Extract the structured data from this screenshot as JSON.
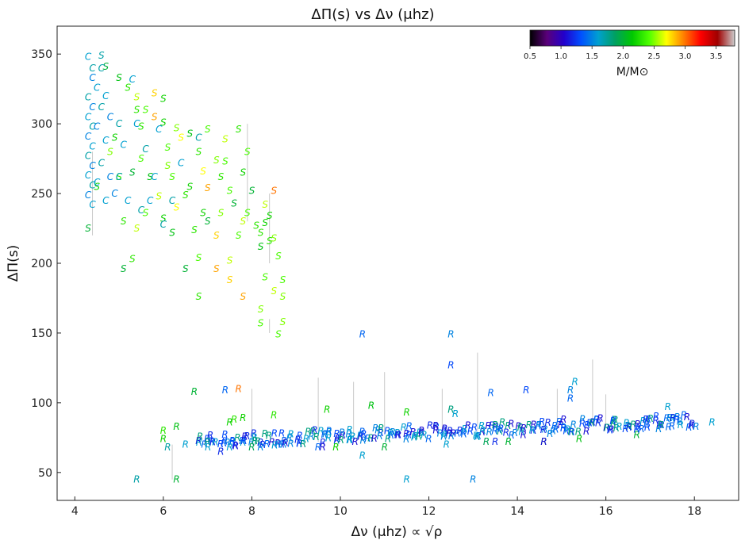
{
  "chart_data": {
    "type": "scatter",
    "title": "ΔΠ(s) vs Δν (μhz)",
    "xlabel": "Δν (μhz) ∝ √ρ",
    "ylabel": "ΔΠ(s)",
    "xlim": [
      3.6,
      19.0
    ],
    "ylim": [
      30,
      370
    ],
    "xticks": [
      4,
      6,
      8,
      10,
      12,
      14,
      16,
      18
    ],
    "yticks": [
      50,
      100,
      150,
      200,
      250,
      300,
      350
    ],
    "grid": false,
    "marker_type": "text glyphs: S, C, R",
    "colorbar": {
      "label": "M/M⊙",
      "range": [
        0.5,
        3.8
      ],
      "ticks": [
        0.5,
        1.0,
        1.5,
        2.0,
        2.5,
        3.0,
        3.5
      ],
      "tick_labels": [
        "0.5",
        "1.0",
        "1.5",
        "2.0",
        "2.5",
        "3.0",
        "3.5"
      ],
      "colormap": [
        "#000000",
        "#5a007a",
        "#2200cc",
        "#0050ff",
        "#00a0d0",
        "#00a060",
        "#00c800",
        "#50ff00",
        "#ffff00",
        "#ff8000",
        "#ff0000",
        "#a00000",
        "#cccccc"
      ],
      "placement": "top-right"
    },
    "series": [
      {
        "symbol": "S",
        "points": [
          [
            4.6,
            349,
            1.7
          ],
          [
            4.7,
            341,
            2.0
          ],
          [
            5.0,
            333,
            2.1
          ],
          [
            5.2,
            326,
            2.3
          ],
          [
            5.4,
            319,
            2.6
          ],
          [
            5.6,
            310,
            2.4
          ],
          [
            5.8,
            305,
            2.9
          ],
          [
            6.0,
            301,
            2.2
          ],
          [
            6.3,
            297,
            2.5
          ],
          [
            6.6,
            293,
            2.1
          ],
          [
            7.0,
            296,
            2.4
          ],
          [
            7.4,
            289,
            2.6
          ],
          [
            7.7,
            296,
            2.3
          ],
          [
            7.2,
            274,
            2.5
          ],
          [
            7.8,
            265,
            2.2
          ],
          [
            6.9,
            266,
            2.7
          ],
          [
            6.2,
            262,
            2.4
          ],
          [
            5.7,
            262,
            2.1
          ],
          [
            5.3,
            265,
            2.0
          ],
          [
            5.0,
            262,
            2.3
          ],
          [
            5.9,
            248,
            2.6
          ],
          [
            6.5,
            249,
            2.3
          ],
          [
            7.0,
            254,
            2.9
          ],
          [
            7.5,
            252,
            2.4
          ],
          [
            8.0,
            252,
            2.0
          ],
          [
            8.5,
            252,
            3.0
          ],
          [
            5.1,
            230,
            2.3
          ],
          [
            5.6,
            236,
            2.4
          ],
          [
            6.3,
            240,
            2.7
          ],
          [
            6.9,
            236,
            2.2
          ],
          [
            7.3,
            236,
            2.5
          ],
          [
            7.9,
            236,
            2.4
          ],
          [
            8.4,
            234,
            2.2
          ],
          [
            4.3,
            225,
            2.0
          ],
          [
            5.4,
            225,
            2.6
          ],
          [
            6.2,
            222,
            2.1
          ],
          [
            6.7,
            224,
            2.3
          ],
          [
            7.2,
            220,
            2.8
          ],
          [
            7.7,
            220,
            2.4
          ],
          [
            8.2,
            222,
            2.3
          ],
          [
            8.5,
            218,
            2.5
          ],
          [
            8.2,
            212,
            2.1
          ],
          [
            8.6,
            205,
            2.4
          ],
          [
            7.5,
            202,
            2.6
          ],
          [
            6.8,
            204,
            2.4
          ],
          [
            6.5,
            196,
            2.0
          ],
          [
            5.3,
            203,
            2.3
          ],
          [
            5.1,
            196,
            2.0
          ],
          [
            7.2,
            196,
            2.9
          ],
          [
            7.5,
            188,
            2.8
          ],
          [
            8.3,
            190,
            2.4
          ],
          [
            8.7,
            188,
            2.4
          ],
          [
            8.5,
            180,
            2.6
          ],
          [
            8.7,
            176,
            2.5
          ],
          [
            6.8,
            176,
            2.3
          ],
          [
            7.8,
            176,
            2.9
          ],
          [
            8.2,
            167,
            2.5
          ],
          [
            8.7,
            158,
            2.5
          ],
          [
            8.2,
            157,
            2.4
          ],
          [
            8.6,
            149,
            2.4
          ],
          [
            4.5,
            255,
            2.2
          ],
          [
            4.8,
            280,
            2.5
          ],
          [
            5.5,
            298,
            2.3
          ],
          [
            6.1,
            283,
            2.4
          ],
          [
            6.8,
            280,
            2.3
          ],
          [
            7.4,
            273,
            2.4
          ],
          [
            7.6,
            243,
            2.0
          ],
          [
            8.3,
            242,
            2.6
          ],
          [
            8.1,
            227,
            2.3
          ],
          [
            7.0,
            230,
            2.0
          ],
          [
            6.4,
            290,
            2.7
          ],
          [
            6.0,
            318,
            2.2
          ],
          [
            5.4,
            310,
            2.3
          ],
          [
            5.8,
            322,
            2.8
          ],
          [
            4.9,
            290,
            2.2
          ],
          [
            5.5,
            275,
            2.4
          ],
          [
            6.1,
            270,
            2.5
          ],
          [
            6.6,
            255,
            2.2
          ],
          [
            7.3,
            262,
            2.3
          ],
          [
            7.9,
            280,
            2.4
          ],
          [
            8.3,
            229,
            2.2
          ],
          [
            7.8,
            230,
            2.6
          ],
          [
            8.4,
            216,
            2.3
          ],
          [
            6.0,
            232,
            2.2
          ]
        ]
      },
      {
        "symbol": "C",
        "points": [
          [
            4.3,
            348,
            1.6
          ],
          [
            4.4,
            340,
            1.7
          ],
          [
            4.4,
            333,
            1.5
          ],
          [
            4.5,
            326,
            1.6
          ],
          [
            4.3,
            319,
            1.7
          ],
          [
            4.4,
            312,
            1.5
          ],
          [
            4.3,
            305,
            1.6
          ],
          [
            4.4,
            298,
            1.7
          ],
          [
            4.3,
            291,
            1.5
          ],
          [
            4.4,
            284,
            1.6
          ],
          [
            4.3,
            277,
            1.7
          ],
          [
            4.4,
            270,
            1.5
          ],
          [
            4.3,
            263,
            1.6
          ],
          [
            4.4,
            256,
            1.7
          ],
          [
            4.3,
            249,
            1.5
          ],
          [
            4.4,
            242,
            1.6
          ],
          [
            4.6,
            340,
            1.7
          ],
          [
            4.7,
            320,
            1.6
          ],
          [
            4.8,
            305,
            1.5
          ],
          [
            4.7,
            288,
            1.6
          ],
          [
            4.6,
            272,
            1.7
          ],
          [
            4.8,
            262,
            1.5
          ],
          [
            4.7,
            245,
            1.6
          ],
          [
            5.0,
            300,
            1.7
          ],
          [
            5.1,
            285,
            1.6
          ],
          [
            5.0,
            262,
            1.7
          ],
          [
            5.2,
            245,
            1.6
          ],
          [
            5.4,
            300,
            1.6
          ],
          [
            5.6,
            282,
            1.7
          ],
          [
            5.8,
            262,
            1.6
          ],
          [
            6.2,
            245,
            1.7
          ],
          [
            6.4,
            272,
            1.6
          ],
          [
            6.8,
            290,
            1.7
          ],
          [
            6.0,
            228,
            1.7
          ],
          [
            4.9,
            250,
            1.5
          ],
          [
            5.3,
            332,
            1.6
          ],
          [
            4.5,
            298,
            1.5
          ],
          [
            4.5,
            258,
            1.6
          ],
          [
            4.6,
            312,
            1.7
          ],
          [
            5.9,
            296,
            1.6
          ],
          [
            5.5,
            238,
            1.7
          ],
          [
            5.7,
            245,
            1.6
          ]
        ]
      },
      {
        "symbol": "R",
        "points": [
          [
            10.5,
            149,
            1.4
          ],
          [
            12.5,
            149,
            1.5
          ],
          [
            12.5,
            127,
            1.3
          ],
          [
            13.4,
            107,
            1.4
          ],
          [
            14.2,
            109,
            1.3
          ],
          [
            15.2,
            109,
            1.5
          ],
          [
            15.3,
            115,
            1.6
          ],
          [
            15.2,
            103,
            1.4
          ],
          [
            6.7,
            108,
            2.0
          ],
          [
            7.4,
            109,
            1.4
          ],
          [
            7.7,
            110,
            3.0
          ],
          [
            9.7,
            95,
            2.2
          ],
          [
            10.7,
            98,
            2.1
          ],
          [
            11.5,
            93,
            2.2
          ],
          [
            12.5,
            95,
            1.8
          ],
          [
            12.6,
            92,
            1.6
          ],
          [
            7.6,
            88,
            2.3
          ],
          [
            7.8,
            89,
            2.2
          ],
          [
            8.5,
            91,
            2.3
          ],
          [
            6.3,
            83,
            2.1
          ],
          [
            6.0,
            80,
            2.3
          ],
          [
            6.0,
            74,
            2.2
          ],
          [
            7.5,
            86,
            2.2
          ],
          [
            6.1,
            68,
            1.7
          ],
          [
            6.5,
            70,
            1.6
          ],
          [
            7.0,
            72,
            1.8
          ],
          [
            7.5,
            68,
            1.6
          ],
          [
            8.0,
            68,
            1.9
          ],
          [
            8.6,
            70,
            1.5
          ],
          [
            9.5,
            68,
            1.4
          ],
          [
            9.9,
            68,
            2.2
          ],
          [
            10.5,
            62,
            1.6
          ],
          [
            11.0,
            68,
            2.0
          ],
          [
            12.4,
            70,
            1.6
          ],
          [
            13.3,
            72,
            1.9
          ],
          [
            13.8,
            72,
            2.0
          ],
          [
            14.6,
            72,
            1.9
          ],
          [
            15.4,
            74,
            2.1
          ],
          [
            16.7,
            77,
            2.0
          ],
          [
            16.7,
            81,
            1.3
          ],
          [
            17.6,
            88,
            1.3
          ],
          [
            18.4,
            86,
            1.6
          ],
          [
            17.4,
            97,
            1.6
          ],
          [
            5.4,
            45,
            1.7
          ],
          [
            6.3,
            45,
            2.0
          ],
          [
            11.5,
            45,
            1.6
          ],
          [
            13.0,
            45,
            1.5
          ],
          [
            13.5,
            72,
            1.2
          ],
          [
            14.6,
            72,
            1.1
          ],
          [
            9.6,
            68,
            1.1
          ],
          [
            7.3,
            65,
            1.2
          ],
          [
            16.9,
            88,
            1.2
          ],
          [
            8.2,
            68,
            1.5
          ]
        ]
      }
    ],
    "band": {
      "symbol": "R",
      "x_start": 6.8,
      "x_end": 18.0,
      "y_start": 72,
      "y_end": 87,
      "spread": 10,
      "colors": [
        1.1,
        1.3,
        1.5,
        1.6,
        1.8,
        1.4,
        1.2
      ]
    },
    "error_bars": [
      [
        7.9,
        300,
        230
      ],
      [
        8.4,
        250,
        200
      ],
      [
        9.5,
        118,
        72
      ],
      [
        10.3,
        115,
        75
      ],
      [
        11.0,
        122,
        78
      ],
      [
        13.1,
        136,
        80
      ],
      [
        15.7,
        131,
        84
      ],
      [
        16.0,
        106,
        84
      ],
      [
        14.9,
        110,
        82
      ],
      [
        8.4,
        160,
        150
      ],
      [
        6.2,
        70,
        45
      ],
      [
        12.3,
        110,
        80
      ],
      [
        8.0,
        110,
        73
      ],
      [
        4.4,
        280,
        220
      ]
    ]
  }
}
